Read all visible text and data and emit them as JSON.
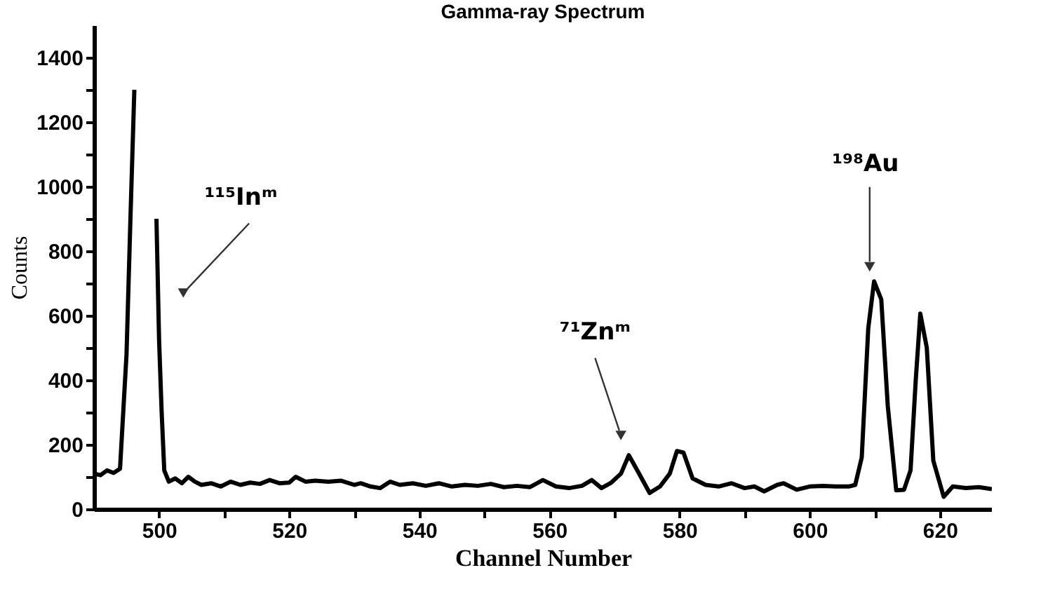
{
  "chart_data": {
    "type": "line",
    "title": "Gamma-ray Spectrum",
    "xlabel": "Channel Number",
    "ylabel": "Counts",
    "x": [
      490,
      491,
      492,
      493,
      494,
      495,
      495.6,
      496.2,
      496.9,
      499.3,
      499.6,
      500,
      500.4,
      500.8,
      501.5,
      502.5,
      503.5,
      504.5,
      505.5,
      506.5,
      508,
      509.5,
      511,
      512.5,
      514,
      515.5,
      517,
      518.5,
      520,
      521,
      522.5,
      524,
      526,
      528,
      530,
      531,
      532.5,
      534,
      535.5,
      537,
      539,
      541,
      543,
      545,
      547,
      549,
      551,
      553,
      555,
      557,
      559,
      561,
      563,
      565,
      566.5,
      568,
      569.5,
      571,
      572.2,
      573.5,
      575.4,
      577,
      578.5,
      579.6,
      580.6,
      582,
      584,
      586,
      588,
      590,
      591.5,
      593,
      595,
      596,
      598,
      600,
      602,
      604,
      606,
      607,
      608,
      609,
      609.9,
      611,
      612,
      613.3,
      614.5,
      615.5,
      616.3,
      617,
      618,
      619,
      620.6,
      622,
      624,
      626,
      628
    ],
    "values": [
      110,
      105,
      120,
      112,
      125,
      480,
      900,
      1300,
      null,
      null,
      900,
      527,
      300,
      120,
      85,
      95,
      80,
      100,
      85,
      75,
      80,
      70,
      85,
      75,
      82,
      78,
      90,
      80,
      82,
      100,
      85,
      88,
      85,
      88,
      75,
      80,
      70,
      65,
      85,
      75,
      80,
      72,
      80,
      70,
      75,
      72,
      78,
      68,
      72,
      68,
      90,
      70,
      65,
      72,
      90,
      65,
      82,
      110,
      167,
      120,
      50,
      70,
      110,
      180,
      175,
      95,
      75,
      70,
      80,
      65,
      70,
      55,
      75,
      80,
      60,
      70,
      72,
      70,
      70,
      75,
      160,
      560,
      706,
      650,
      320,
      58,
      60,
      120,
      400,
      606,
      500,
      150,
      38,
      70,
      65,
      68,
      62
    ],
    "color": "#000000",
    "marker": "none",
    "line_style": "solid",
    "xlim": [
      490,
      628
    ],
    "xticks": [
      500,
      {
        "value": 510,
        "label": null
      },
      520,
      {
        "value": 530,
        "label": null
      },
      540,
      {
        "value": 550,
        "label": null
      },
      560,
      {
        "value": 570,
        "label": null
      },
      580,
      {
        "value": 590,
        "label": null
      },
      600,
      {
        "value": 610,
        "label": null
      },
      620
    ],
    "ylim": [
      0,
      1500
    ],
    "yticks": [
      0,
      {
        "value": 100,
        "label": null
      },
      200,
      {
        "value": 300,
        "label": null
      },
      400,
      {
        "value": 500,
        "label": null
      },
      600,
      {
        "value": 700,
        "label": null
      },
      800,
      {
        "value": 900,
        "label": null
      },
      1000,
      {
        "value": 1100,
        "label": null
      },
      1200,
      {
        "value": 1300,
        "label": null
      },
      1400
    ],
    "grid": false,
    "annotations": [
      "¹¹⁵Inᵐ",
      "⁷¹Znᵐ",
      "¹⁹⁸Au"
    ]
  }
}
